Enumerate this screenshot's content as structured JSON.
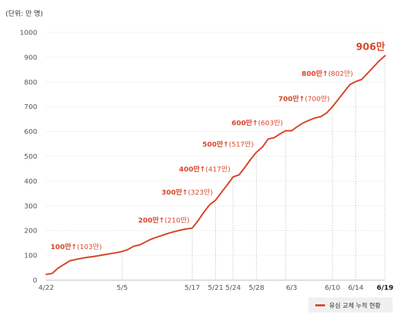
{
  "chart_data": {
    "type": "line",
    "unit_label": "(단위: 만 명)",
    "ylim": [
      0,
      1000
    ],
    "y_ticks": [
      "0",
      "100",
      "200",
      "300",
      "400",
      "500",
      "600",
      "700",
      "800",
      "900",
      "1000"
    ],
    "grid": "horizontal dotted",
    "legend_position": "bottom-right",
    "x_ticks": [
      {
        "day": 0,
        "label": "4/22"
      },
      {
        "day": 13,
        "label": "5/5"
      },
      {
        "day": 25,
        "label": "5/17"
      },
      {
        "day": 29,
        "label": "5/21"
      },
      {
        "day": 32,
        "label": "5/24"
      },
      {
        "day": 36,
        "label": "5/28"
      },
      {
        "day": 42,
        "label": "6/3"
      },
      {
        "day": 49,
        "label": "6/10"
      },
      {
        "day": 53,
        "label": "6/14"
      },
      {
        "day": 58,
        "label": "6/19",
        "bold": true
      }
    ],
    "series": [
      {
        "name": "유심 교체 누적 현황",
        "color": "#d9472b",
        "x": [
          0,
          1,
          2,
          3,
          4,
          5,
          6,
          7,
          8,
          9,
          10,
          11,
          12,
          13,
          14,
          15,
          16,
          17,
          18,
          19,
          20,
          21,
          22,
          23,
          24,
          25,
          26,
          27,
          28,
          29,
          30,
          31,
          32,
          33,
          34,
          35,
          36,
          37,
          38,
          39,
          40,
          41,
          42,
          43,
          44,
          45,
          46,
          47,
          48,
          49,
          50,
          51,
          52,
          53,
          54,
          55,
          56,
          57,
          58
        ],
        "values": [
          23,
          27,
          48,
          63,
          78,
          83,
          88,
          92,
          95,
          99,
          103,
          107,
          111,
          116,
          124,
          137,
          142,
          154,
          166,
          174,
          182,
          190,
          196,
          202,
          207,
          210,
          240,
          275,
          305,
          323,
          355,
          385,
          417,
          425,
          455,
          488,
          517,
          537,
          570,
          575,
          590,
          603,
          603,
          620,
          635,
          645,
          655,
          660,
          675,
          700,
          730,
          760,
          790,
          802,
          810,
          835,
          860,
          885,
          906
        ]
      }
    ],
    "milestones": [
      {
        "day": 10,
        "value": 103,
        "label_bold": "100만↑",
        "label_paren": "(103만)",
        "guide": false
      },
      {
        "day": 25,
        "value": 210,
        "label_bold": "200만↑",
        "label_paren": "(210만)",
        "guide": true
      },
      {
        "day": 29,
        "value": 323,
        "label_bold": "300만↑",
        "label_paren": "(323만)",
        "guide": true
      },
      {
        "day": 32,
        "value": 417,
        "label_bold": "400만↑",
        "label_paren": "(417만)",
        "guide": true
      },
      {
        "day": 36,
        "value": 517,
        "label_bold": "500만↑",
        "label_paren": "(517만)",
        "guide": true
      },
      {
        "day": 41,
        "value": 603,
        "label_bold": "600만↑",
        "label_paren": "(603만)",
        "guide": true
      },
      {
        "day": 49,
        "value": 700,
        "label_bold": "700만↑",
        "label_paren": "(700만)",
        "guide": true
      },
      {
        "day": 53,
        "value": 802,
        "label_bold": "800만↑",
        "label_paren": "(802만)",
        "guide": true
      }
    ],
    "final_label": "906만",
    "final_value": 906,
    "final_day": 58,
    "guide_day_5_5": 13
  }
}
